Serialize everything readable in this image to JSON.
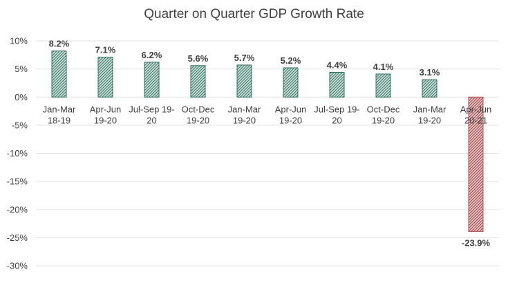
{
  "chart_data": {
    "type": "bar",
    "title": "Quarter on Quarter GDP Growth Rate",
    "xlabel": "",
    "ylabel": "",
    "ylim": [
      -30,
      10
    ],
    "yticks": [
      "10%",
      "5%",
      "0%",
      "-5%",
      "-10%",
      "-15%",
      "-20%",
      "-25%",
      "-30%"
    ],
    "grid": true,
    "legend": "none",
    "categories": [
      [
        "Jan-Mar",
        "18-19"
      ],
      [
        "Apr-Jun",
        "19-20"
      ],
      [
        "Jul-Sep 19-",
        "20"
      ],
      [
        "Oct-Dec",
        "19-20"
      ],
      [
        "Jan-Mar",
        "19-20"
      ],
      [
        "Apr-Jun",
        "19-20"
      ],
      [
        "Jul-Sep 19-",
        "20"
      ],
      [
        "Oct-Dec",
        "19-20"
      ],
      [
        "Jan-Mar",
        "19-20"
      ],
      [
        "Apr-Jun",
        "20-21"
      ]
    ],
    "values": [
      8.2,
      7.1,
      6.2,
      5.6,
      5.7,
      5.2,
      4.4,
      4.1,
      3.1,
      -23.9
    ],
    "data_labels": [
      "8.2%",
      "7.1%",
      "6.2%",
      "5.6%",
      "5.7%",
      "5.2%",
      "4.4%",
      "4.1%",
      "3.1%",
      "-23.9%"
    ],
    "colors": {
      "positive": "#2f6f5e",
      "negative": "#b84a4a"
    }
  }
}
